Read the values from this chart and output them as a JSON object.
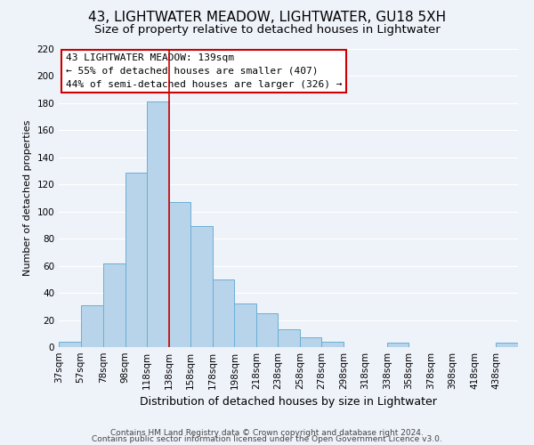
{
  "title": "43, LIGHTWATER MEADOW, LIGHTWATER, GU18 5XH",
  "subtitle": "Size of property relative to detached houses in Lightwater",
  "xlabel": "Distribution of detached houses by size in Lightwater",
  "ylabel": "Number of detached properties",
  "bin_edges": [
    37,
    57,
    78,
    98,
    118,
    138,
    158,
    178,
    198,
    218,
    238,
    258,
    278,
    298,
    318,
    338,
    358,
    378,
    398,
    418,
    438,
    458
  ],
  "bar_heights": [
    4,
    31,
    62,
    129,
    181,
    107,
    89,
    50,
    32,
    25,
    13,
    7,
    4,
    0,
    0,
    3,
    0,
    0,
    0,
    0,
    3
  ],
  "bar_color": "#b8d4ea",
  "bar_edgecolor": "#6aaed6",
  "ref_line_x": 138,
  "ref_line_color": "#cc0000",
  "ylim": [
    0,
    220
  ],
  "yticks": [
    0,
    20,
    40,
    60,
    80,
    100,
    120,
    140,
    160,
    180,
    200,
    220
  ],
  "annotation_title": "43 LIGHTWATER MEADOW: 139sqm",
  "annotation_line1": "← 55% of detached houses are smaller (407)",
  "annotation_line2": "44% of semi-detached houses are larger (326) →",
  "annotation_box_color": "#ffffff",
  "annotation_box_edgecolor": "#cc0000",
  "footer_line1": "Contains HM Land Registry data © Crown copyright and database right 2024.",
  "footer_line2": "Contains public sector information licensed under the Open Government Licence v3.0.",
  "background_color": "#eef2f9",
  "grid_color": "#ffffff",
  "title_fontsize": 11,
  "subtitle_fontsize": 9.5,
  "xlabel_fontsize": 9,
  "ylabel_fontsize": 8,
  "annot_fontsize": 8,
  "tick_fontsize": 7.5,
  "footer_fontsize": 6.5
}
